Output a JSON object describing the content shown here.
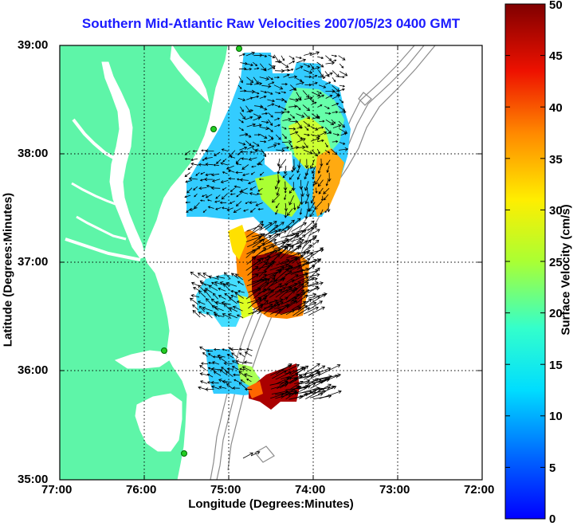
{
  "map": {
    "title": "Southern Mid-Atlantic Raw Velocities 2007/05/23 0400 GMT",
    "xlabel": "Longitude (Degrees:Minutes)",
    "ylabel": "Latitude (Degrees:Minutes)",
    "x_ticks": [
      "77:00",
      "76:00",
      "75:00",
      "74:00",
      "73:00",
      "72:00"
    ],
    "y_ticks": [
      "39:00",
      "38:00",
      "37:00",
      "36:00",
      "35:00"
    ],
    "lon_range": [
      -77,
      -72
    ],
    "lat_range": [
      35,
      39
    ],
    "grid": "dotted",
    "colors": {
      "land": "#5ef5a8",
      "water": "#ffffff",
      "depth_contours": "#8c8c8c",
      "title": "#1a1aff",
      "arrows": "#000000",
      "sites": "#22cc22"
    }
  },
  "colorbar": {
    "label": "Surface Velocity (cm/s)",
    "ticks": [
      "50",
      "45",
      "40",
      "35",
      "30",
      "25",
      "20",
      "15",
      "10",
      "5",
      "0"
    ],
    "range": [
      0,
      50
    ],
    "colormap": "jet"
  }
}
